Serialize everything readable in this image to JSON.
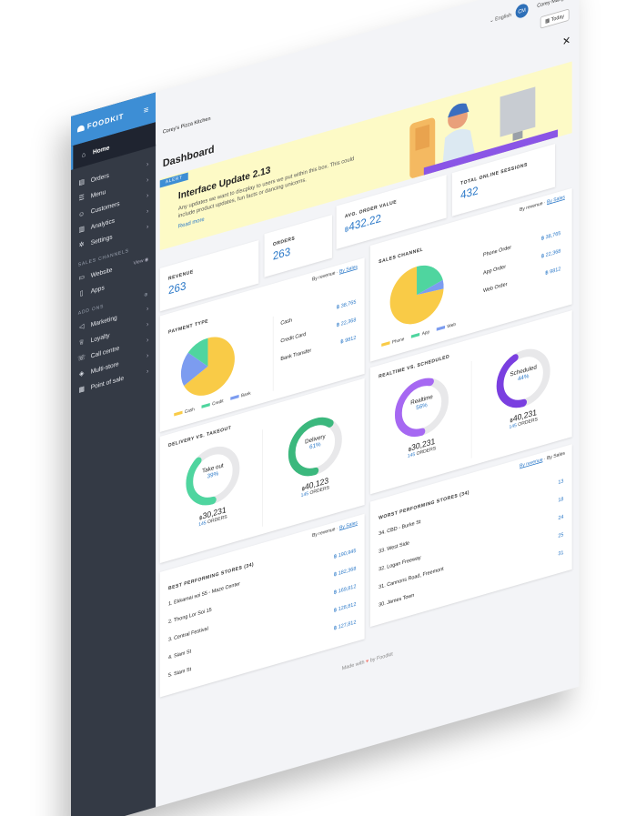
{
  "brand": "FOODKIT",
  "header": {
    "language": "English",
    "user_initials": "CM",
    "user_name": "Corey Mangos",
    "store_name": "Corey's Pizza Kitchen",
    "today_label": "Today"
  },
  "sidebar": {
    "home": "Home",
    "items": [
      {
        "label": "Orders",
        "icon": "orders-icon"
      },
      {
        "label": "Menu",
        "icon": "menu-icon"
      },
      {
        "label": "Customers",
        "icon": "customers-icon"
      },
      {
        "label": "Analytics",
        "icon": "analytics-icon"
      },
      {
        "label": "Settings",
        "icon": "settings-icon"
      }
    ],
    "sales_channels_title": "SALES CHANNELS",
    "sales_channels": [
      {
        "label": "Website",
        "extra": "View"
      },
      {
        "label": "Apps"
      }
    ],
    "addons_title": "ADD ONS",
    "addons": [
      {
        "label": "Marketing"
      },
      {
        "label": "Loyalty"
      },
      {
        "label": "Call centre"
      },
      {
        "label": "Multi-store"
      },
      {
        "label": "Point of sale"
      }
    ]
  },
  "page_title": "Dashboard",
  "alert": {
    "badge": "ALERT",
    "title": "Interface Update 2.13",
    "text": "Any updates we want to discplay to users we put within this box. This could include product updates, fun facts or dancing unicorns.",
    "link": "Read more"
  },
  "stats": {
    "revenue": {
      "label": "REVENUE",
      "value": "263"
    },
    "orders": {
      "label": "ORDERS",
      "value": "263"
    },
    "avg": {
      "label": "AVG. ORDER VALUE",
      "currency": "฿",
      "value": "432.22"
    },
    "sessions": {
      "label": "TOTAL ONLINE SESSIONS",
      "value": "432"
    }
  },
  "sort": {
    "by_revenue": "By revenue",
    "sep": "·",
    "by_sales": "By Sales"
  },
  "payment": {
    "title": "PAYMENT TYPE",
    "rows": [
      {
        "label": "Cash",
        "value": "฿ 38,765"
      },
      {
        "label": "Credit Card",
        "value": "฿ 22,368"
      },
      {
        "label": "Bank Transfer",
        "value": "฿ 9812"
      }
    ],
    "legend": [
      "Cash",
      "Credit",
      "Bank"
    ]
  },
  "sales_channel": {
    "title": "SALES CHANNEL",
    "rows": [
      {
        "label": "Phone Order",
        "value": "฿ 38,765"
      },
      {
        "label": "App Order",
        "value": "฿ 22,368"
      },
      {
        "label": "Web Order",
        "value": "฿ 9812"
      }
    ],
    "legend": [
      "Phone",
      "App",
      "Web"
    ]
  },
  "delivery": {
    "title": "DELIVERY VS. TAKEOUT",
    "takeout": {
      "label": "Take out",
      "pct": "39%",
      "amount": "30,231",
      "orders": "145",
      "orders_label": "ORDERS",
      "fraction": 0.39
    },
    "delivery": {
      "label": "Delivery",
      "pct": "61%",
      "amount": "40,123",
      "orders": "145",
      "orders_label": "ORDERS",
      "fraction": 0.61
    }
  },
  "realtime": {
    "title": "REALTIME VS. SCHEDULED",
    "realtime": {
      "label": "Realtime",
      "pct": "56%",
      "amount": "30,231",
      "orders": "145",
      "orders_label": "ORDERS",
      "fraction": 0.56
    },
    "scheduled": {
      "label": "Scheduled",
      "pct": "44%",
      "amount": "40,231",
      "orders": "145",
      "orders_label": "ORDERS",
      "fraction": 0.44
    }
  },
  "best": {
    "title": "BEST PERFORMING STORES (34)",
    "rows": [
      {
        "label": "1. Ekkamai soi 55 - Maze Center",
        "value": "฿ 190,945"
      },
      {
        "label": "2. Thong Lor Soi 15",
        "value": "฿ 182,368"
      },
      {
        "label": "3. Central Festival",
        "value": "฿ 169,812"
      },
      {
        "label": "4. Siam St",
        "value": "฿ 128,812"
      },
      {
        "label": "5. Siam St",
        "value": "฿ 127,812"
      }
    ]
  },
  "worst": {
    "title": "WORST PERFORMING STORES (34)",
    "rows": [
      {
        "label": "34. CBD - Burke St",
        "value": "13"
      },
      {
        "label": "33. West Side",
        "value": "18"
      },
      {
        "label": "32. Logan Freeway",
        "value": "24"
      },
      {
        "label": "31. Cannons Road, Freemont",
        "value": "25"
      },
      {
        "label": "30. James Town",
        "value": "31"
      }
    ]
  },
  "footer": {
    "pre": "Made with",
    "post": "by Foodkit"
  },
  "colors": {
    "accent": "#2a78c8",
    "yellow": "#f9cb47",
    "green": "#4fd59f",
    "blue": "#7c9cf0",
    "purple": "#8a55e6",
    "sidebar": "#343a45"
  }
}
